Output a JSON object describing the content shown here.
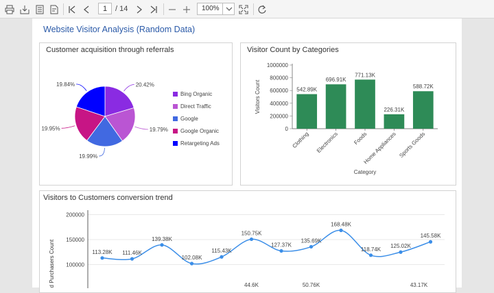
{
  "toolbar": {
    "page_current": "1",
    "page_total": "/ 14",
    "zoom": "100%",
    "icons": [
      "print-icon",
      "export-icon",
      "document-icon",
      "print-layout-icon",
      "first-page-icon",
      "previous-page-icon",
      "next-page-icon",
      "last-page-icon",
      "zoom-out-icon",
      "zoom-in-icon",
      "zoom-dropdown-icon",
      "fit-page-icon",
      "refresh-icon"
    ]
  },
  "report": {
    "title": "Website Visitor Analysis (Random Data)"
  },
  "pie_panel": {
    "title": "Customer acquisition through referrals"
  },
  "bar_panel": {
    "title": "Visitor Count by Categories"
  },
  "line_panel": {
    "title": "Visitors to Customers conversion trend"
  },
  "chart_data": [
    {
      "type": "pie",
      "title": "Customer acquisition through referrals",
      "slices": [
        {
          "label": "Bing Organic",
          "value": 20.42,
          "display": "20.42%",
          "color": "#8a2be2"
        },
        {
          "label": "Direct Traffic",
          "value": 19.79,
          "display": "19.79%",
          "color": "#ba55d3"
        },
        {
          "label": "Google",
          "value": 19.99,
          "display": "19.99%",
          "color": "#4169e1"
        },
        {
          "label": "Google Organic",
          "value": 19.95,
          "display": "19.95%",
          "color": "#c71585"
        },
        {
          "label": "Retargeting Ads",
          "value": 19.84,
          "display": "19.84%",
          "color": "#0000ff"
        }
      ],
      "legend_position": "right"
    },
    {
      "type": "bar",
      "title": "Visitor Count by Categories",
      "categories": [
        "Clothing",
        "Electronics",
        "Foods",
        "Home Appliances",
        "Sports Goods"
      ],
      "values": [
        542890,
        696910,
        771130,
        226310,
        588720
      ],
      "labels": [
        "542.89K",
        "696.91K",
        "771.13K",
        "226.31K",
        "588.72K"
      ],
      "xlabel": "Category",
      "ylabel": "Visitors Count",
      "ylim": [
        0,
        1000000
      ],
      "yticks": [
        "0",
        "200000",
        "400000",
        "600000",
        "800000",
        "1000000"
      ],
      "color": "#2e8b57"
    },
    {
      "type": "line",
      "title": "Visitors to Customers conversion trend",
      "ylabel": "rs and Purchasers Count",
      "ylim_visible": [
        100000,
        200000
      ],
      "yticks": [
        "100000",
        "150000",
        "200000"
      ],
      "series": [
        {
          "values": [
            113280,
            111460,
            139380,
            102080,
            115430,
            150750,
            127370,
            135690,
            168480,
            118740,
            125020,
            145580
          ],
          "labels": [
            "113.28K",
            "111.46K",
            "139.38K",
            "102.08K",
            "115.43K",
            "150.75K",
            "127.37K",
            "135.69K",
            "168.48K",
            "118.74K",
            "125.02K",
            "145.58K"
          ],
          "color": "#3b8ee8"
        }
      ],
      "partial_labels_below": [
        "44.6K",
        "50.76K",
        "43.17K"
      ]
    }
  ]
}
